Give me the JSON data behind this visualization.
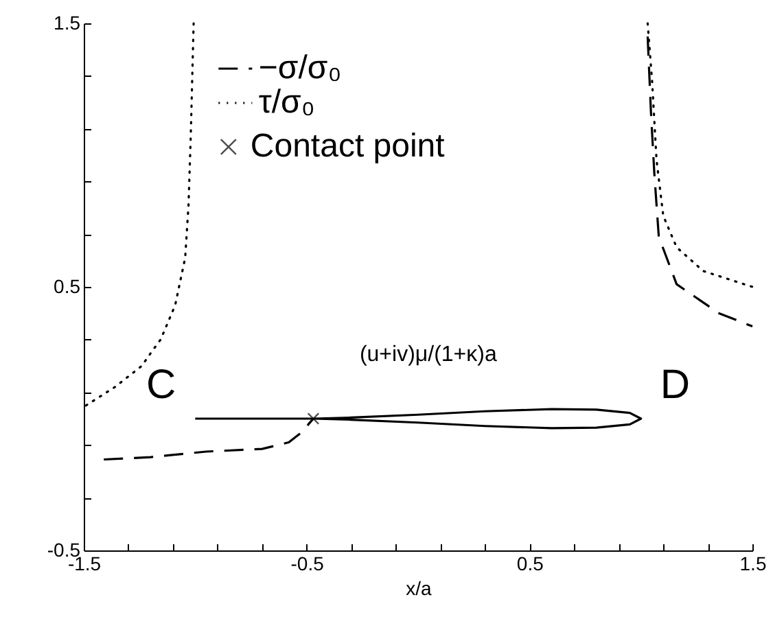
{
  "chart_data": {
    "type": "line",
    "xlabel": "x/a",
    "xlim": [
      -1.5,
      1.5
    ],
    "ylim": [
      -0.5,
      1.5
    ],
    "xticks": [
      -1.5,
      {
        "value": -1.3,
        "label": null
      },
      {
        "value": -1.1,
        "label": null
      },
      {
        "value": -0.9,
        "label": null
      },
      {
        "value": -0.7,
        "label": null
      },
      -0.5,
      {
        "value": -0.3,
        "label": null
      },
      {
        "value": -0.1,
        "label": null
      },
      {
        "value": 0.1,
        "label": null
      },
      {
        "value": 0.3,
        "label": null
      },
      0.5,
      {
        "value": 0.7,
        "label": null
      },
      {
        "value": 0.9,
        "label": null
      },
      {
        "value": 1.1,
        "label": null
      },
      {
        "value": 1.3,
        "label": null
      },
      1.5
    ],
    "yticks": [
      -0.5,
      {
        "value": -0.3,
        "label": null
      },
      {
        "value": -0.1,
        "label": null
      },
      {
        "value": 0.1,
        "label": null
      },
      {
        "value": 0.3,
        "label": null
      },
      0.5,
      {
        "value": 0.7,
        "label": null
      },
      {
        "value": 0.9,
        "label": null
      },
      {
        "value": 1.1,
        "label": null
      },
      {
        "value": 1.3,
        "label": null
      },
      1.5
    ],
    "legend": "top",
    "series": [
      {
        "name": "−σ/σ₀",
        "line_style": "dashed",
        "color": "#000000",
        "x": [
          -1.41,
          -1.2,
          -0.95,
          -0.7,
          -0.58,
          -0.52,
          -0.47,
          0.3,
          1.03,
          1.045,
          1.06,
          1.08,
          1.16,
          1.35,
          1.5
        ],
        "values": [
          -0.155,
          -0.146,
          -0.125,
          -0.115,
          -0.09,
          -0.05,
          0,
          null,
          1.45,
          1.16,
          0.93,
          0.69,
          0.51,
          0.4,
          0.35
        ]
      },
      {
        "name": "τ/σ₀",
        "line_style": "dotted",
        "color": "#000000",
        "x": [
          -1.49,
          -1.36,
          -1.24,
          -1.19,
          -1.155,
          -1.09,
          -1.045,
          -1.03,
          -1.02,
          -1.007,
          0,
          1.03,
          1.05,
          1.07,
          1.1,
          1.16,
          1.28,
          1.5
        ],
        "values": [
          0.05,
          0.12,
          0.2,
          0.26,
          0.3,
          0.43,
          0.61,
          0.81,
          1.07,
          1.5,
          null,
          1.5,
          1.28,
          0.98,
          0.77,
          0.65,
          0.56,
          0.5
        ]
      },
      {
        "line_style": "solid",
        "color": "#000000",
        "x": [
          -1,
          -0.47,
          -0.3,
          0,
          0.3,
          0.6,
          0.8,
          0.95,
          1.0,
          0.95,
          0.8,
          0.6,
          0.3,
          0,
          -0.3,
          -0.47
        ],
        "values": [
          0,
          0,
          0.004,
          0.015,
          0.028,
          0.036,
          0.034,
          0.022,
          0,
          -0.022,
          -0.034,
          -0.036,
          -0.028,
          -0.015,
          -0.004,
          0
        ]
      },
      {
        "name": "Contact point",
        "type": "scatter",
        "marker": "cross",
        "color": "#000000",
        "x": [
          -0.47
        ],
        "values": [
          0
        ]
      }
    ],
    "annotations": [
      "C",
      "D",
      "(u+iv)μ/(1+κ)a"
    ]
  }
}
